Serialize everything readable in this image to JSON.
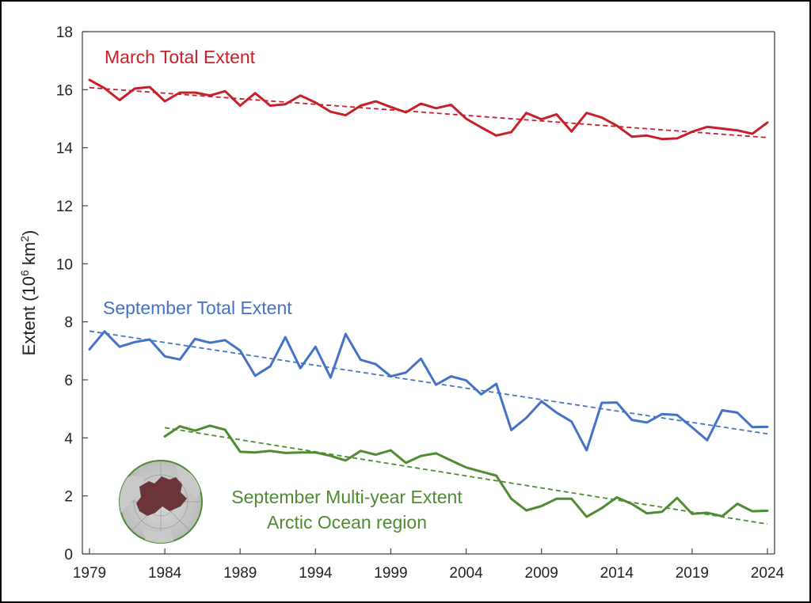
{
  "chart_data": {
    "type": "line",
    "ylabel": "Extent (10",
    "ylabel_sup": "6",
    "ylabel_unit": " km",
    "ylabel_sup2": "2",
    "ylabel_close": ")",
    "xlim": [
      1979,
      2024
    ],
    "ylim": [
      0,
      18
    ],
    "x_ticks": [
      "1979",
      "1984",
      "1989",
      "1994",
      "1999",
      "2004",
      "2009",
      "2014",
      "2019",
      "2024"
    ],
    "y_ticks": [
      "0",
      "2",
      "4",
      "6",
      "8",
      "10",
      "12",
      "14",
      "16",
      "18"
    ],
    "grid": false,
    "series": [
      {
        "name": "March Total Extent",
        "color": "#c8202a",
        "x_start": 1979,
        "values": [
          16.34,
          16.05,
          15.64,
          16.04,
          16.09,
          15.6,
          15.9,
          15.9,
          15.8,
          15.95,
          15.45,
          15.88,
          15.45,
          15.5,
          15.8,
          15.56,
          15.24,
          15.12,
          15.45,
          15.6,
          15.4,
          15.22,
          15.52,
          15.36,
          15.48,
          15.0,
          14.7,
          14.42,
          14.54,
          15.2,
          14.98,
          15.15,
          14.56,
          15.2,
          15.04,
          14.76,
          14.38,
          14.42,
          14.3,
          14.32,
          14.55,
          14.72,
          14.66,
          14.6,
          14.48,
          14.87
        ],
        "trend": [
          16.07,
          14.35
        ]
      },
      {
        "name": "September Total Extent",
        "color": "#4472c4",
        "x_start": 1979,
        "values": [
          7.05,
          7.67,
          7.14,
          7.3,
          7.39,
          6.81,
          6.7,
          7.41,
          7.28,
          7.37,
          7.01,
          6.14,
          6.47,
          7.47,
          6.4,
          7.14,
          6.08,
          7.58,
          6.69,
          6.54,
          6.12,
          6.25,
          6.73,
          5.83,
          6.12,
          5.98,
          5.5,
          5.86,
          4.27,
          4.69,
          5.26,
          4.87,
          4.56,
          3.57,
          5.21,
          5.22,
          4.62,
          4.53,
          4.82,
          4.79,
          4.36,
          3.92,
          4.95,
          4.87,
          4.37,
          4.38
        ],
        "trend": [
          7.68,
          4.14
        ]
      },
      {
        "name": "September Multi-year Extent",
        "name2": "Arctic Ocean region",
        "color": "#4e8b32",
        "x_start": 1984,
        "values": [
          4.05,
          4.4,
          4.25,
          4.42,
          4.28,
          3.52,
          3.5,
          3.55,
          3.48,
          3.5,
          3.5,
          3.38,
          3.22,
          3.55,
          3.42,
          3.57,
          3.14,
          3.38,
          3.47,
          3.22,
          2.98,
          2.84,
          2.7,
          1.9,
          1.5,
          1.65,
          1.9,
          1.9,
          1.28,
          1.58,
          1.95,
          1.72,
          1.4,
          1.45,
          1.93,
          1.38,
          1.42,
          1.3,
          1.73,
          1.47,
          1.49
        ],
        "trend": [
          4.35,
          1.03
        ]
      }
    ]
  }
}
